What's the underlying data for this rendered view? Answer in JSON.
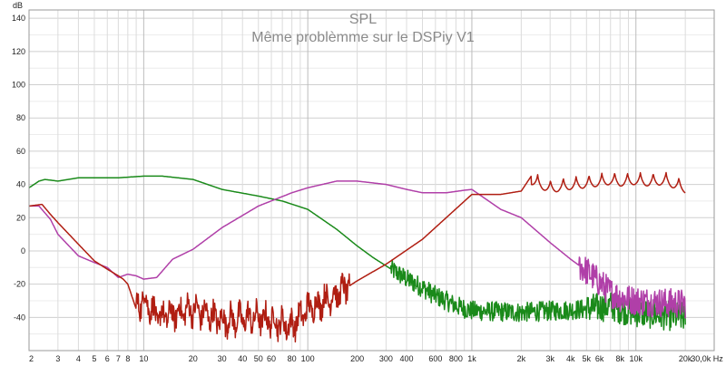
{
  "chart_data": {
    "type": "line",
    "title": "SPL",
    "subtitle": "Même problèmme sur le DSPiy V1",
    "ylabel": "dB",
    "xlabel": "",
    "x_unit": "Hz",
    "x_scale": "log",
    "xlim": [
      2,
      30000
    ],
    "ylim": [
      -60,
      145
    ],
    "grid": true,
    "y_ticks": [
      140,
      120,
      100,
      80,
      60,
      40,
      20,
      0,
      -20,
      -40
    ],
    "x_ticks": [
      {
        "value": 2,
        "label": "2"
      },
      {
        "value": 3,
        "label": "3"
      },
      {
        "value": 4,
        "label": "4"
      },
      {
        "value": 5,
        "label": "5"
      },
      {
        "value": 6,
        "label": "6"
      },
      {
        "value": 7,
        "label": "7"
      },
      {
        "value": 8,
        "label": "8"
      },
      {
        "value": 10,
        "label": "10"
      },
      {
        "value": 20,
        "label": "20"
      },
      {
        "value": 30,
        "label": "30"
      },
      {
        "value": 40,
        "label": "40"
      },
      {
        "value": 50,
        "label": "50"
      },
      {
        "value": 60,
        "label": "60"
      },
      {
        "value": 80,
        "label": "80"
      },
      {
        "value": 100,
        "label": "100"
      },
      {
        "value": 200,
        "label": "200"
      },
      {
        "value": 300,
        "label": "300"
      },
      {
        "value": 400,
        "label": "400"
      },
      {
        "value": 600,
        "label": "600"
      },
      {
        "value": 800,
        "label": "800"
      },
      {
        "value": 1000,
        "label": "1k"
      },
      {
        "value": 2000,
        "label": "2k"
      },
      {
        "value": 3000,
        "label": "3k"
      },
      {
        "value": 4000,
        "label": "4k"
      },
      {
        "value": 5000,
        "label": "5k"
      },
      {
        "value": 6000,
        "label": "6k"
      },
      {
        "value": 8000,
        "label": "8k"
      },
      {
        "value": 10000,
        "label": "10k"
      },
      {
        "value": 20000,
        "label": "20k"
      },
      {
        "value": 30000,
        "label": "30,0k Hz"
      }
    ],
    "series": [
      {
        "color": "#1a8a1a",
        "x": [
          2,
          2.3,
          2.5,
          3,
          4,
          5,
          7,
          10,
          13,
          20,
          30,
          50,
          70,
          100,
          150,
          200,
          250,
          300,
          400,
          500,
          600,
          700,
          800,
          1000,
          2000,
          5000,
          7000,
          8000,
          10000,
          20000
        ],
        "values": [
          38,
          42,
          43,
          42,
          44,
          44,
          44,
          45,
          45,
          43,
          37,
          33,
          30,
          25,
          13,
          3,
          -4,
          -9,
          -17,
          -22,
          -27,
          -30,
          -33,
          -36,
          -37,
          -35,
          -33,
          -35,
          -37,
          -40
        ]
      },
      {
        "color": "#b03fa8",
        "x": [
          2,
          2.3,
          2.7,
          3,
          4,
          5,
          6,
          7,
          8,
          9,
          10,
          12,
          15,
          20,
          30,
          50,
          80,
          100,
          150,
          200,
          300,
          400,
          500,
          700,
          900,
          1000,
          1500,
          2000,
          3000,
          4000,
          5000,
          7000,
          8000,
          10000,
          20000
        ],
        "values": [
          27,
          27,
          19,
          10,
          -3,
          -7,
          -10,
          -16,
          -14,
          -15,
          -17,
          -16,
          -5,
          1,
          14,
          27,
          35,
          38,
          42,
          42,
          40,
          37,
          35,
          35,
          36.5,
          37,
          25,
          20,
          5,
          -5,
          -12,
          -25,
          -28,
          -30,
          -32
        ]
      },
      {
        "color": "#b01e12",
        "x": [
          2,
          2.4,
          2.7,
          3,
          4,
          5,
          6,
          7,
          7.5,
          8,
          9,
          10,
          12,
          15,
          20,
          30,
          50,
          80,
          100,
          150,
          200,
          300,
          500,
          1000,
          1500,
          2000,
          2300,
          3000,
          4000,
          5000,
          6000,
          7000,
          8000,
          10000,
          12000,
          15000,
          20000
        ],
        "values": [
          27,
          28,
          22,
          17,
          4,
          -6,
          -11,
          -15,
          -17,
          -20,
          -35,
          -28,
          -40,
          -38,
          -35,
          -42,
          -40,
          -45,
          -35,
          -26,
          -18,
          -8,
          7,
          34,
          34,
          36,
          45,
          40,
          42,
          43,
          44,
          45,
          44,
          45,
          44,
          45,
          40
        ]
      }
    ]
  }
}
